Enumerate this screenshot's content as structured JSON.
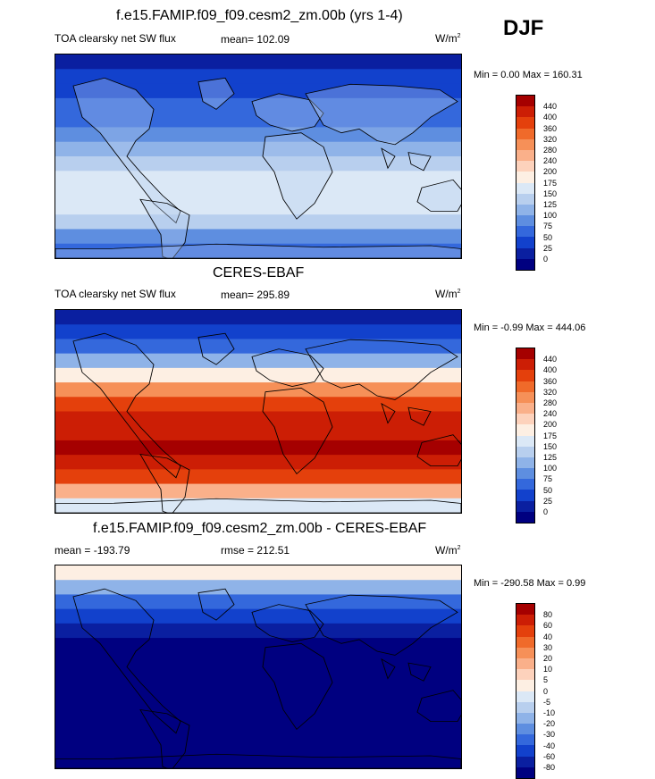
{
  "season": "DJF",
  "units": "W/m",
  "units_sup": "2",
  "land_color": "#b8cfee",
  "panels": [
    {
      "title": "f.e15.FAMIP.f09_f09.cesm2_zm.00b (yrs 1-4)",
      "left_label": "TOA clearsky net SW flux",
      "center_label": "mean= 102.09",
      "minmax": "Min =   0.00 Max = 160.31",
      "levels": [
        "440",
        "400",
        "360",
        "320",
        "280",
        "240",
        "200",
        "175",
        "150",
        "125",
        "100",
        "75",
        "50",
        "25",
        "0"
      ],
      "colors": [
        "#a50000",
        "#cc1e05",
        "#e4400c",
        "#f06a2a",
        "#f69058",
        "#fab08a",
        "#fdd2bc",
        "#fdefe3",
        "#dbe8f6",
        "#b8cfee",
        "#8fb3e8",
        "#5e8ee0",
        "#3468dc",
        "#1241cc",
        "#0a1fa0",
        "#000080"
      ]
    },
    {
      "title": "CERES-EBAF",
      "left_label": "TOA clearsky net SW flux",
      "center_label": "mean= 295.89",
      "minmax": "Min =  -0.99 Max = 444.06",
      "levels": [
        "440",
        "400",
        "360",
        "320",
        "280",
        "240",
        "200",
        "175",
        "150",
        "125",
        "100",
        "75",
        "50",
        "25",
        "0"
      ],
      "colors": [
        "#a50000",
        "#cc1e05",
        "#e4400c",
        "#f06a2a",
        "#f69058",
        "#fab08a",
        "#fdd2bc",
        "#fdefe3",
        "#dbe8f6",
        "#b8cfee",
        "#8fb3e8",
        "#5e8ee0",
        "#3468dc",
        "#1241cc",
        "#0a1fa0",
        "#000080"
      ]
    },
    {
      "title": "f.e15.FAMIP.f09_f09.cesm2_zm.00b - CERES-EBAF",
      "left_label": "mean = -193.79",
      "center_label": "rmse = 212.51",
      "minmax": "Min = -290.58 Max =   0.99",
      "levels": [
        "80",
        "60",
        "40",
        "30",
        "20",
        "10",
        "5",
        "0",
        "-5",
        "-10",
        "-20",
        "-30",
        "-40",
        "-60",
        "-80"
      ],
      "colors": [
        "#a50000",
        "#cc1e05",
        "#e4400c",
        "#f06a2a",
        "#f69058",
        "#fab08a",
        "#fdd2bc",
        "#fdefe3",
        "#dbe8f6",
        "#b8cfee",
        "#8fb3e8",
        "#5e8ee0",
        "#3468dc",
        "#1241cc",
        "#0a1fa0",
        "#000080"
      ]
    }
  ],
  "map_bands": [
    [
      "#0a1fa0",
      "#1241cc",
      "#1241cc",
      "#3468dc",
      "#3468dc",
      "#5e8ee0",
      "#8fb3e8",
      "#b8cfee",
      "#dbe8f6",
      "#dbe8f6",
      "#dbe8f6",
      "#b8cfee",
      "#5e8ee0",
      "#3468dc"
    ],
    [
      "#0a1fa0",
      "#1241cc",
      "#3468dc",
      "#8fb3e8",
      "#fdefe3",
      "#f69058",
      "#e4400c",
      "#cc1e05",
      "#cc1e05",
      "#a50000",
      "#cc1e05",
      "#e4400c",
      "#fab08a",
      "#dbe8f6"
    ],
    [
      "#fdefe3",
      "#8fb3e8",
      "#3468dc",
      "#1241cc",
      "#0a1fa0",
      "#000080",
      "#000080",
      "#000080",
      "#000080",
      "#000080",
      "#000080",
      "#000080",
      "#000080",
      "#000080"
    ]
  ]
}
